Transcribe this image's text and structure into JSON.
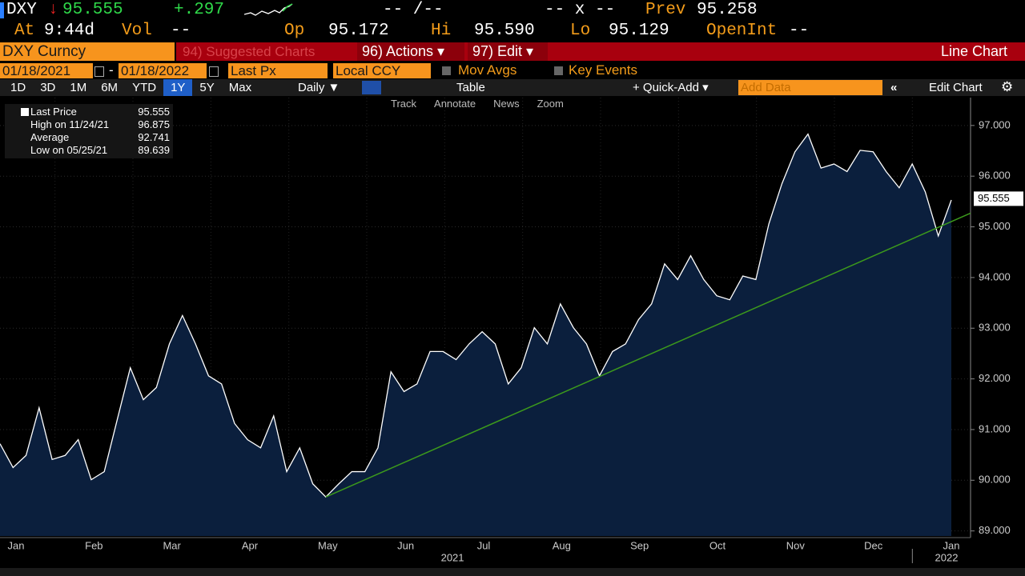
{
  "header": {
    "ticker": "DXY",
    "arrow": "↓",
    "last": "95.555",
    "change": "+.297",
    "bid_ask": "-- /--",
    "size": "-- x --",
    "prev_label": "Prev",
    "prev": "95.258",
    "at_label": "At",
    "time": "9:44d",
    "vol_label": "Vol",
    "vol": "--",
    "open_label": "Op",
    "open": "95.172",
    "high_label": "Hi",
    "high": "95.590",
    "low_label": "Lo",
    "low": "95.129",
    "oi_label": "OpenInt",
    "oi": "--"
  },
  "toolbar": {
    "security": "DXY Curncy",
    "suggested": "94) Suggested Charts",
    "actions": "96) Actions ▾",
    "edit": "97) Edit ▾",
    "view": "Line Chart",
    "start_date": "01/18/2021",
    "dash": "-",
    "end_date": "01/18/2022",
    "field": "Last Px",
    "currency": "Local CCY",
    "mov_avgs": "Mov Avgs",
    "key_events": "Key Events",
    "periods": [
      "1D",
      "3D",
      "1M",
      "6M",
      "YTD",
      "1Y",
      "5Y",
      "Max"
    ],
    "selected_period": "1Y",
    "frequency": "Daily ▼",
    "table": "Table",
    "quick_add": "+ Quick-Add ▾",
    "add_data": "Add Data",
    "edit_chart": "Edit Chart",
    "tools": [
      "Track",
      "Annotate",
      "News",
      "Zoom"
    ]
  },
  "chart_data": {
    "type": "area",
    "series": [
      {
        "name": "Last Price",
        "color": "#ffffff",
        "fill": "#0b1f3d",
        "values": [
          90.72,
          90.25,
          90.49,
          91.43,
          90.41,
          90.49,
          90.8,
          90.01,
          90.17,
          91.2,
          92.22,
          91.59,
          91.83,
          92.69,
          93.25,
          92.69,
          92.06,
          91.9,
          91.12,
          90.8,
          90.64,
          91.27,
          90.17,
          90.64,
          89.93,
          89.67,
          89.93,
          90.17,
          90.17,
          90.64,
          92.14,
          91.75,
          91.9,
          92.54,
          92.54,
          92.38,
          92.69,
          92.93,
          92.69,
          91.9,
          92.22,
          93.01,
          92.69,
          93.48,
          93.01,
          92.69,
          92.06,
          92.54,
          92.69,
          93.17,
          93.48,
          94.27,
          93.96,
          94.43,
          93.96,
          93.64,
          93.56,
          94.03,
          93.96,
          95.06,
          95.85,
          96.48,
          96.83,
          96.16,
          96.24,
          96.09,
          96.51,
          96.48,
          96.09,
          95.77,
          96.24,
          95.69,
          94.82,
          95.53
        ]
      }
    ],
    "trendline": {
      "color": "#3c9a1c",
      "values": [
        89.67,
        95.27
      ]
    },
    "ylim": [
      88.9,
      97.55
    ],
    "yticks": [
      {
        "value": 89,
        "label": "89.000"
      },
      {
        "value": 90,
        "label": "90.000"
      },
      {
        "value": 91,
        "label": "91.000"
      },
      {
        "value": 92,
        "label": "92.000"
      },
      {
        "value": 93,
        "label": "93.000"
      },
      {
        "value": 94,
        "label": "94.000"
      },
      {
        "value": 95,
        "label": "95.000"
      },
      {
        "value": 96,
        "label": "96.000"
      },
      {
        "value": 97,
        "label": "97.000"
      }
    ],
    "grid": true,
    "x_labels": [
      "Jan",
      "Feb",
      "Mar",
      "Apr",
      "May",
      "Jun",
      "Jul",
      "Aug",
      "Sep",
      "Oct",
      "Nov",
      "Dec",
      "Jan"
    ],
    "year_labels": [
      "2021",
      "2022"
    ],
    "last_value": 95.555,
    "legend": [
      {
        "label": "Last Price",
        "value": 95.555
      },
      {
        "label": "High on 11/24/21",
        "value": 96.875
      },
      {
        "label": "Average",
        "value": 92.741
      },
      {
        "label": "Low on 05/25/21",
        "value": 89.639
      }
    ]
  }
}
